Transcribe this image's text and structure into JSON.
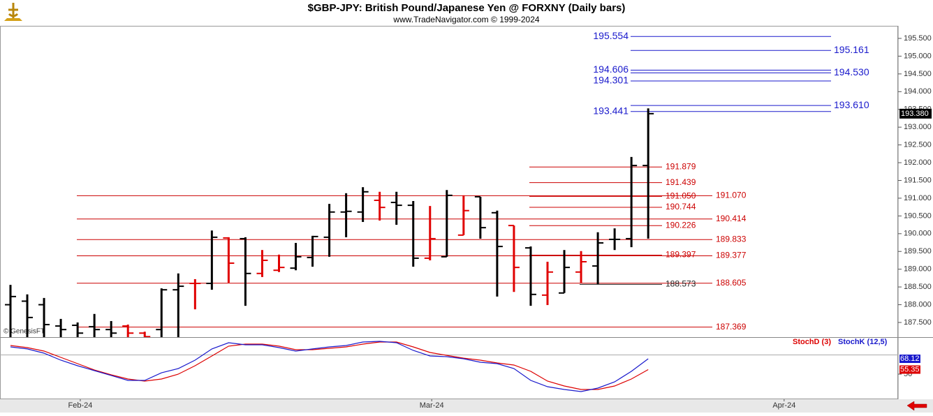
{
  "chart_data": {
    "type": "ohlc",
    "title": "$GBP-JPY:  British Pound/Japanese Yen @ FORXNY  (Daily bars)",
    "subtitle": "www.TradeNavigator.com © 1999-2024",
    "source": "© GenesisFT",
    "xlim": [
      -0.624,
      52.89
    ],
    "xticks": [
      {
        "value": 4.16,
        "label": "Feb-24"
      },
      {
        "value": 25.1,
        "label": "Mar-24"
      },
      {
        "value": 46.1,
        "label": "Apr-24"
      }
    ],
    "ylim": [
      187.087,
      195.854
    ],
    "yticks": [
      {
        "value": 187.5,
        "label": "187.500"
      },
      {
        "value": 188,
        "label": "188.000"
      },
      {
        "value": 188.5,
        "label": "188.500"
      },
      {
        "value": 189,
        "label": "189.000"
      },
      {
        "value": 189.5,
        "label": "189.500"
      },
      {
        "value": 190,
        "label": "190.000"
      },
      {
        "value": 190.5,
        "label": "190.500"
      },
      {
        "value": 191,
        "label": "191.000"
      },
      {
        "value": 191.5,
        "label": "191.500"
      },
      {
        "value": 192,
        "label": "192.000"
      },
      {
        "value": 192.5,
        "label": "192.500"
      },
      {
        "value": 193,
        "label": "193.000"
      },
      {
        "value": 193.5,
        "label": "193.500"
      },
      {
        "value": 194,
        "label": "194.000"
      },
      {
        "value": 194.5,
        "label": "194.500"
      },
      {
        "value": 195,
        "label": "195.000"
      },
      {
        "value": 195.5,
        "label": "195.500"
      }
    ],
    "open": [
      188.0,
      188.1,
      188.0,
      187.4,
      187.42,
      187.38,
      187.3,
      187.4,
      187.2,
      187.3,
      188.42,
      188.6,
      188.6,
      189.88,
      189.86,
      188.88,
      188.97,
      189.03,
      189.33,
      189.9,
      190.61,
      190.61,
      190.94,
      190.88,
      190.8,
      189.31,
      189.35,
      189.96,
      191.04,
      190.59,
      190.23,
      189.6,
      188.27,
      188.33,
      188.92,
      189.09,
      189.84,
      189.86,
      191.92
    ],
    "high": [
      188.56,
      188.29,
      188.19,
      187.6,
      187.5,
      187.74,
      187.54,
      187.44,
      187.24,
      188.46,
      188.88,
      188.72,
      190.09,
      189.9,
      189.9,
      189.54,
      189.41,
      189.74,
      189.94,
      190.84,
      191.14,
      191.31,
      191.18,
      191.18,
      190.92,
      190.78,
      191.23,
      191.08,
      191.04,
      190.65,
      190.23,
      189.64,
      189.21,
      189.54,
      189.51,
      190.04,
      190.15,
      192.16,
      193.53
    ],
    "low": [
      187.0,
      187.0,
      187.0,
      187.0,
      187.0,
      187.0,
      187.0,
      187.0,
      187.0,
      187.0,
      187.0,
      187.87,
      188.42,
      188.62,
      187.97,
      188.78,
      188.92,
      188.97,
      189.07,
      189.35,
      189.9,
      190.33,
      190.37,
      190.25,
      189.07,
      189.25,
      189.35,
      189.96,
      189.86,
      188.23,
      188.36,
      187.97,
      187.99,
      188.33,
      188.62,
      188.58,
      189.54,
      189.62,
      189.86
    ],
    "close": [
      188.23,
      187.64,
      187.44,
      187.3,
      187.2,
      187.3,
      187.2,
      187.2,
      187.1,
      188.42,
      188.52,
      188.6,
      189.9,
      189.17,
      188.88,
      189.25,
      189.05,
      189.35,
      189.92,
      190.61,
      190.63,
      191.18,
      190.74,
      190.8,
      189.31,
      189.86,
      191.08,
      190.65,
      190.17,
      189.64,
      189.05,
      188.29,
      188.92,
      189.05,
      189.21,
      189.74,
      189.84,
      191.92,
      193.38
    ],
    "bar_colors": [
      "#000000",
      "#000000",
      "#000000",
      "#000000",
      "#000000",
      "#000000",
      "#000000",
      "#e00000",
      "#e00000",
      "#000000",
      "#000000",
      "#e00000",
      "#000000",
      "#e00000",
      "#000000",
      "#e00000",
      "#e00000",
      "#000000",
      "#000000",
      "#000000",
      "#000000",
      "#000000",
      "#e00000",
      "#000000",
      "#000000",
      "#e00000",
      "#000000",
      "#e00000",
      "#000000",
      "#000000",
      "#e00000",
      "#000000",
      "#e00000",
      "#000000",
      "#e00000",
      "#000000",
      "#000000",
      "#000000",
      "#000000"
    ],
    "last_price": {
      "value": 193.38,
      "label": "193.380"
    },
    "level_groups": [
      {
        "color": "#1a1acc",
        "levels": [
          {
            "value": 195.554,
            "label": "195.554"
          },
          {
            "value": 194.606,
            "label": "194.606"
          },
          {
            "value": 194.301,
            "label": "194.301"
          },
          {
            "value": 193.441,
            "label": "193.441"
          }
        ]
      },
      {
        "color": "#1a1acc",
        "levels": [
          {
            "value": 195.161,
            "label": "195.161"
          },
          {
            "value": 194.53,
            "label": "194.530"
          },
          {
            "value": 193.61,
            "label": "193.610"
          }
        ]
      },
      {
        "color": "#cc0000",
        "levels": [
          {
            "value": 191.879,
            "label": "191.879"
          },
          {
            "value": 191.439,
            "label": "191.439"
          },
          {
            "value": 191.05,
            "label": "191.050"
          },
          {
            "value": 190.744,
            "label": "190.744"
          },
          {
            "value": 190.226,
            "label": "190.226"
          },
          {
            "value": 189.397,
            "label": "189.397"
          }
        ]
      },
      {
        "color": "#222222",
        "levels": [
          {
            "value": 188.573,
            "label": "188.573"
          }
        ]
      },
      {
        "color": "#cc0000",
        "levels": [
          {
            "value": 191.07,
            "label": "191.070"
          },
          {
            "value": 190.414,
            "label": "190.414"
          },
          {
            "value": 189.833,
            "label": "189.833"
          },
          {
            "value": 189.377,
            "label": "189.377"
          },
          {
            "value": 188.605,
            "label": "188.605"
          },
          {
            "value": 187.369,
            "label": "187.369"
          }
        ]
      }
    ],
    "stoch": {
      "ylim": [
        20.35,
        93.66
      ],
      "yticks": [
        50
      ],
      "series": [
        {
          "name": "StochD (3)",
          "color": "#dd0000",
          "values": [
            83.8,
            81.3,
            77.2,
            69.8,
            62.4,
            54.9,
            49.2,
            44.2,
            41.8,
            44.2,
            50.0,
            59.9,
            71.4,
            83.0,
            85.4,
            85.4,
            83.0,
            78.8,
            78.8,
            80.5,
            82.1,
            85.4,
            87.9,
            87.9,
            82.1,
            75.5,
            72.2,
            68.9,
            66.5,
            63.2,
            60.7,
            53.3,
            41.8,
            36.0,
            31.9,
            31.9,
            36.0,
            44.2,
            55.35
          ]
        },
        {
          "name": "StochK (12,5)",
          "color": "#1a1acc",
          "values": [
            82.1,
            79.7,
            74.7,
            66.5,
            59.9,
            54.1,
            48.4,
            42.6,
            42.6,
            51.6,
            56.6,
            66.5,
            79.7,
            87.1,
            84.6,
            84.6,
            81.3,
            77.2,
            79.7,
            82.1,
            83.8,
            87.9,
            88.7,
            87.1,
            78.0,
            71.4,
            70.6,
            68.1,
            64.0,
            62.4,
            56.6,
            42.6,
            35.2,
            31.9,
            29.4,
            33.5,
            40.9,
            53.3,
            68.12
          ]
        }
      ]
    }
  }
}
